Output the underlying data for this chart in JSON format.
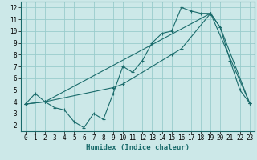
{
  "xlabel": "Humidex (Indice chaleur)",
  "bg_color": "#cce8e8",
  "grid_color": "#99cccc",
  "line_color": "#1a6b6b",
  "xlim": [
    -0.5,
    23.5
  ],
  "ylim": [
    1.5,
    12.5
  ],
  "xticks": [
    0,
    1,
    2,
    3,
    4,
    5,
    6,
    7,
    8,
    9,
    10,
    11,
    12,
    13,
    14,
    15,
    16,
    17,
    18,
    19,
    20,
    21,
    22,
    23
  ],
  "yticks": [
    2,
    3,
    4,
    5,
    6,
    7,
    8,
    9,
    10,
    11,
    12
  ],
  "line1_x": [
    0,
    1,
    2,
    3,
    4,
    5,
    6,
    7,
    8,
    9,
    10,
    11,
    12,
    13,
    14,
    15,
    16,
    17,
    18,
    19,
    20,
    21,
    22,
    23
  ],
  "line1_y": [
    3.8,
    4.7,
    4.0,
    3.5,
    3.3,
    2.3,
    1.8,
    3.0,
    2.5,
    4.7,
    7.0,
    6.5,
    7.5,
    9.0,
    9.8,
    10.0,
    12.0,
    11.7,
    11.5,
    11.5,
    10.3,
    7.5,
    5.0,
    3.9
  ],
  "line2_x": [
    0,
    2,
    19,
    23
  ],
  "line2_y": [
    3.8,
    4.0,
    11.5,
    3.9
  ],
  "line3_x": [
    0,
    2,
    9,
    10,
    15,
    16,
    19,
    20,
    23
  ],
  "line3_y": [
    3.8,
    4.0,
    5.2,
    5.5,
    8.0,
    8.5,
    11.5,
    10.3,
    3.9
  ],
  "xlabel_fontsize": 6.5,
  "tick_fontsize": 5.5
}
